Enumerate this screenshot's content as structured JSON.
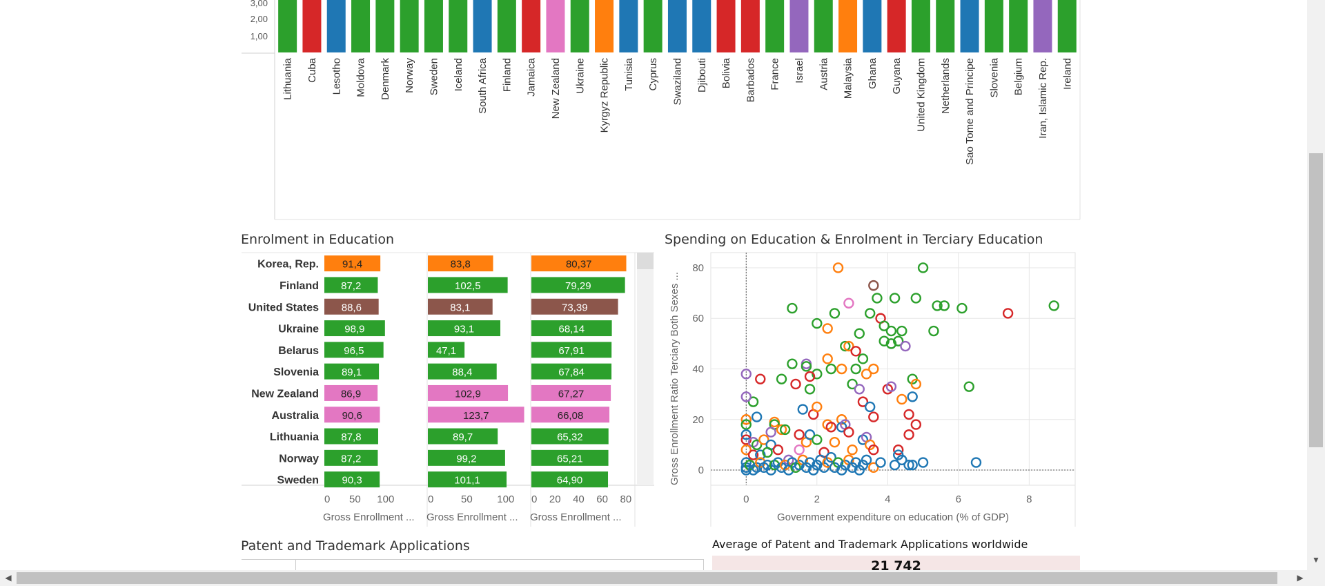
{
  "sections": {
    "enrolment_title": "Enrolment in Education",
    "spending_title": "Spending on Education & Enrolment in Terciary Education",
    "patent_title": "Patent and Trademark Applications",
    "patent_avg_label": "Average of Patent and Trademark Applications worldwide",
    "patent_avg_value": "21 742"
  },
  "colors": {
    "green": "#2ca02c",
    "red": "#d62728",
    "blue": "#1f77b4",
    "pink": "#e377c2",
    "orange": "#ff7f0e",
    "purple": "#9467bd",
    "brown": "#8c564b",
    "grid": "#e6e6e6",
    "axis_text": "#666666"
  },
  "chart_data": [
    {
      "type": "bar",
      "y_ticks": [
        "1,00",
        "2,00",
        "3,00"
      ],
      "categories": [
        "Lithuania",
        "Cuba",
        "Lesotho",
        "Moldova",
        "Denmark",
        "Norway",
        "Sweden",
        "Iceland",
        "South Africa",
        "Finland",
        "Jamaica",
        "New Zealand",
        "Ukraine",
        "Kyrgyz Republic",
        "Tunisia",
        "Cyprus",
        "Swaziland",
        "Djibouti",
        "Bolivia",
        "Barbados",
        "France",
        "Israel",
        "Austria",
        "Malaysia",
        "Ghana",
        "Guyana",
        "United Kingdom",
        "Netherlands",
        "Sao Tome and Principe",
        "Slovenia",
        "Belgium",
        "Iran, Islamic Rep.",
        "Ireland"
      ],
      "bar_colors": [
        "green",
        "red",
        "blue",
        "green",
        "green",
        "green",
        "green",
        "green",
        "blue",
        "green",
        "red",
        "pink",
        "green",
        "orange",
        "blue",
        "green",
        "blue",
        "blue",
        "red",
        "red",
        "green",
        "purple",
        "green",
        "orange",
        "blue",
        "red",
        "green",
        "green",
        "blue",
        "green",
        "green",
        "purple",
        "green"
      ]
    },
    {
      "type": "bar",
      "orientation": "horizontal",
      "countries": [
        "Korea, Rep.",
        "Finland",
        "United States",
        "Ukraine",
        "Belarus",
        "Slovenia",
        "New Zealand",
        "Australia",
        "Lithuania",
        "Norway",
        "Sweden"
      ],
      "row_colors": [
        "orange",
        "green",
        "brown",
        "green",
        "green",
        "green",
        "pink",
        "pink",
        "green",
        "green",
        "green"
      ],
      "series": [
        {
          "axis_label": "Gross Enrollment ...",
          "values": [
            91.4,
            87.2,
            88.6,
            98.9,
            96.5,
            89.1,
            86.9,
            90.6,
            87.8,
            87.2,
            90.3
          ],
          "labels": [
            "91,4",
            "87,2",
            "88,6",
            "98,9",
            "96,5",
            "89,1",
            "86,9",
            "90,6",
            "87,8",
            "87,2",
            "90,3"
          ],
          "max": 125,
          "ticks": [
            "0",
            "50",
            "100"
          ],
          "tick_values": [
            0,
            50,
            100
          ]
        },
        {
          "axis_label": "Gross Enrollment ...",
          "values": [
            83.8,
            102.5,
            83.1,
            93.1,
            47.1,
            88.4,
            102.9,
            123.7,
            89.7,
            99.2,
            101.1
          ],
          "labels": [
            "83,8",
            "102,5",
            "83,1",
            "93,1",
            "47,1",
            "88,4",
            "102,9",
            "123,7",
            "89,7",
            "99,2",
            "101,1"
          ],
          "max": 125,
          "ticks": [
            "0",
            "50",
            "100"
          ],
          "tick_values": [
            0,
            50,
            100
          ]
        },
        {
          "axis_label": "Gross Enrollment ...",
          "values": [
            80.37,
            79.29,
            73.39,
            68.14,
            67.91,
            67.84,
            67.27,
            66.08,
            65.32,
            65.21,
            64.9
          ],
          "labels": [
            "80,37",
            "79,29",
            "73,39",
            "68,14",
            "67,91",
            "67,84",
            "67,27",
            "66,08",
            "65,32",
            "65,21",
            "64,90"
          ],
          "max": 83,
          "ticks": [
            "0",
            "20",
            "40",
            "60",
            "80"
          ],
          "tick_values": [
            0,
            20,
            40,
            60,
            80
          ]
        }
      ]
    },
    {
      "type": "scatter",
      "xlabel": "Government expenditure on education (% of GDP)",
      "ylabel": "Gross Enrollment Ratio Terciary Both Sexes ...",
      "xlim": [
        -1,
        9.3
      ],
      "ylim": [
        -6,
        86
      ],
      "x_ticks": [
        0,
        2,
        4,
        6,
        8
      ],
      "y_ticks": [
        0,
        20,
        40,
        60,
        80
      ],
      "points": [
        {
          "x": 2.6,
          "y": 80,
          "c": "orange"
        },
        {
          "x": 3.6,
          "y": 73,
          "c": "brown"
        },
        {
          "x": 5.0,
          "y": 80,
          "c": "green"
        },
        {
          "x": 1.3,
          "y": 64,
          "c": "green"
        },
        {
          "x": 2.9,
          "y": 66,
          "c": "pink"
        },
        {
          "x": 3.7,
          "y": 68,
          "c": "green"
        },
        {
          "x": 4.2,
          "y": 68,
          "c": "green"
        },
        {
          "x": 4.8,
          "y": 68,
          "c": "green"
        },
        {
          "x": 5.4,
          "y": 65,
          "c": "green"
        },
        {
          "x": 5.6,
          "y": 65,
          "c": "green"
        },
        {
          "x": 6.1,
          "y": 64,
          "c": "green"
        },
        {
          "x": 7.4,
          "y": 62,
          "c": "red"
        },
        {
          "x": 8.7,
          "y": 65,
          "c": "green"
        },
        {
          "x": 2.5,
          "y": 62,
          "c": "green"
        },
        {
          "x": 3.5,
          "y": 62,
          "c": "green"
        },
        {
          "x": 2.0,
          "y": 58,
          "c": "green"
        },
        {
          "x": 2.3,
          "y": 56,
          "c": "orange"
        },
        {
          "x": 3.8,
          "y": 60,
          "c": "red"
        },
        {
          "x": 3.9,
          "y": 57,
          "c": "green"
        },
        {
          "x": 4.1,
          "y": 55,
          "c": "green"
        },
        {
          "x": 4.4,
          "y": 55,
          "c": "green"
        },
        {
          "x": 3.2,
          "y": 54,
          "c": "green"
        },
        {
          "x": 5.3,
          "y": 55,
          "c": "green"
        },
        {
          "x": 3.9,
          "y": 51,
          "c": "green"
        },
        {
          "x": 4.1,
          "y": 50,
          "c": "green"
        },
        {
          "x": 4.3,
          "y": 51,
          "c": "green"
        },
        {
          "x": 4.5,
          "y": 49,
          "c": "purple"
        },
        {
          "x": 2.8,
          "y": 49,
          "c": "green"
        },
        {
          "x": 2.9,
          "y": 49,
          "c": "orange"
        },
        {
          "x": 3.1,
          "y": 47,
          "c": "red"
        },
        {
          "x": 1.7,
          "y": 42,
          "c": "purple"
        },
        {
          "x": 1.3,
          "y": 42,
          "c": "green"
        },
        {
          "x": 1.7,
          "y": 41,
          "c": "green"
        },
        {
          "x": 2.3,
          "y": 44,
          "c": "orange"
        },
        {
          "x": 3.3,
          "y": 44,
          "c": "green"
        },
        {
          "x": 2.4,
          "y": 40,
          "c": "green"
        },
        {
          "x": 2.7,
          "y": 40,
          "c": "orange"
        },
        {
          "x": 3.1,
          "y": 40,
          "c": "green"
        },
        {
          "x": 3.6,
          "y": 40,
          "c": "orange"
        },
        {
          "x": 3.4,
          "y": 38,
          "c": "orange"
        },
        {
          "x": 2.0,
          "y": 38,
          "c": "green"
        },
        {
          "x": 1.8,
          "y": 37,
          "c": "red"
        },
        {
          "x": 1.0,
          "y": 36,
          "c": "green"
        },
        {
          "x": 1.4,
          "y": 34,
          "c": "red"
        },
        {
          "x": 1.8,
          "y": 32,
          "c": "green"
        },
        {
          "x": 3.0,
          "y": 34,
          "c": "green"
        },
        {
          "x": 3.2,
          "y": 32,
          "c": "purple"
        },
        {
          "x": 4.0,
          "y": 32,
          "c": "red"
        },
        {
          "x": 4.1,
          "y": 33,
          "c": "purple"
        },
        {
          "x": 4.7,
          "y": 36,
          "c": "green"
        },
        {
          "x": 4.8,
          "y": 34,
          "c": "orange"
        },
        {
          "x": 6.3,
          "y": 33,
          "c": "green"
        },
        {
          "x": 4.7,
          "y": 29,
          "c": "blue"
        },
        {
          "x": 4.4,
          "y": 28,
          "c": "orange"
        },
        {
          "x": 0.2,
          "y": 27,
          "c": "green"
        },
        {
          "x": 1.6,
          "y": 24,
          "c": "blue"
        },
        {
          "x": 1.9,
          "y": 22,
          "c": "red"
        },
        {
          "x": 2.0,
          "y": 25,
          "c": "orange"
        },
        {
          "x": 2.7,
          "y": 20,
          "c": "orange"
        },
        {
          "x": 3.3,
          "y": 27,
          "c": "red"
        },
        {
          "x": 3.5,
          "y": 25,
          "c": "blue"
        },
        {
          "x": 3.6,
          "y": 21,
          "c": "red"
        },
        {
          "x": 4.6,
          "y": 22,
          "c": "red"
        },
        {
          "x": 4.8,
          "y": 18,
          "c": "red"
        },
        {
          "x": 0.0,
          "y": 38,
          "c": "purple"
        },
        {
          "x": 0.4,
          "y": 36,
          "c": "red"
        },
        {
          "x": 0.0,
          "y": 29,
          "c": "purple"
        },
        {
          "x": 0.3,
          "y": 21,
          "c": "blue"
        },
        {
          "x": 0.0,
          "y": 20,
          "c": "orange"
        },
        {
          "x": 0.0,
          "y": 18,
          "c": "green"
        },
        {
          "x": 0.8,
          "y": 19,
          "c": "orange"
        },
        {
          "x": 0.8,
          "y": 18,
          "c": "green"
        },
        {
          "x": 1.0,
          "y": 16,
          "c": "orange"
        },
        {
          "x": 1.1,
          "y": 16,
          "c": "green"
        },
        {
          "x": 0.7,
          "y": 15,
          "c": "purple"
        },
        {
          "x": 0.0,
          "y": 14,
          "c": "blue"
        },
        {
          "x": 0.0,
          "y": 12,
          "c": "red"
        },
        {
          "x": 0.2,
          "y": 11,
          "c": "purple"
        },
        {
          "x": 0.3,
          "y": 10,
          "c": "green"
        },
        {
          "x": 0.5,
          "y": 12,
          "c": "orange"
        },
        {
          "x": 0.7,
          "y": 10,
          "c": "blue"
        },
        {
          "x": 0.0,
          "y": 8,
          "c": "orange"
        },
        {
          "x": 0.2,
          "y": 6,
          "c": "red"
        },
        {
          "x": 0.4,
          "y": 6,
          "c": "blue"
        },
        {
          "x": 0.6,
          "y": 7,
          "c": "green"
        },
        {
          "x": 0.9,
          "y": 8,
          "c": "red"
        },
        {
          "x": 1.2,
          "y": 4,
          "c": "purple"
        },
        {
          "x": 1.5,
          "y": 8,
          "c": "pink"
        },
        {
          "x": 1.5,
          "y": 14,
          "c": "red"
        },
        {
          "x": 1.7,
          "y": 11,
          "c": "orange"
        },
        {
          "x": 1.8,
          "y": 14,
          "c": "blue"
        },
        {
          "x": 2.0,
          "y": 12,
          "c": "green"
        },
        {
          "x": 2.2,
          "y": 7,
          "c": "red"
        },
        {
          "x": 2.3,
          "y": 18,
          "c": "orange"
        },
        {
          "x": 2.4,
          "y": 17,
          "c": "red"
        },
        {
          "x": 2.5,
          "y": 11,
          "c": "orange"
        },
        {
          "x": 2.7,
          "y": 17,
          "c": "blue"
        },
        {
          "x": 2.8,
          "y": 18,
          "c": "purple"
        },
        {
          "x": 2.9,
          "y": 15,
          "c": "red"
        },
        {
          "x": 3.0,
          "y": 8,
          "c": "orange"
        },
        {
          "x": 3.3,
          "y": 12,
          "c": "blue"
        },
        {
          "x": 3.4,
          "y": 13,
          "c": "purple"
        },
        {
          "x": 3.5,
          "y": 10,
          "c": "orange"
        },
        {
          "x": 3.6,
          "y": 8,
          "c": "red"
        },
        {
          "x": 4.3,
          "y": 8,
          "c": "red"
        },
        {
          "x": 4.3,
          "y": 6,
          "c": "blue"
        },
        {
          "x": 4.6,
          "y": 14,
          "c": "red"
        },
        {
          "x": 0.0,
          "y": 3,
          "c": "blue"
        },
        {
          "x": 0.0,
          "y": 1,
          "c": "blue"
        },
        {
          "x": 0.0,
          "y": 0,
          "c": "blue"
        },
        {
          "x": 0.1,
          "y": 2,
          "c": "green"
        },
        {
          "x": 0.2,
          "y": 0,
          "c": "blue"
        },
        {
          "x": 0.3,
          "y": 1,
          "c": "blue"
        },
        {
          "x": 0.4,
          "y": 3,
          "c": "orange"
        },
        {
          "x": 0.5,
          "y": 1,
          "c": "blue"
        },
        {
          "x": 0.6,
          "y": 2,
          "c": "blue"
        },
        {
          "x": 0.7,
          "y": 0,
          "c": "blue"
        },
        {
          "x": 0.8,
          "y": 2,
          "c": "green"
        },
        {
          "x": 0.9,
          "y": 3,
          "c": "blue"
        },
        {
          "x": 1.0,
          "y": 1,
          "c": "blue"
        },
        {
          "x": 1.1,
          "y": 2,
          "c": "orange"
        },
        {
          "x": 1.2,
          "y": 0,
          "c": "blue"
        },
        {
          "x": 1.3,
          "y": 3,
          "c": "blue"
        },
        {
          "x": 1.4,
          "y": 1,
          "c": "green"
        },
        {
          "x": 1.5,
          "y": 2,
          "c": "blue"
        },
        {
          "x": 1.6,
          "y": 4,
          "c": "orange"
        },
        {
          "x": 1.7,
          "y": 1,
          "c": "blue"
        },
        {
          "x": 1.8,
          "y": 3,
          "c": "blue"
        },
        {
          "x": 1.9,
          "y": 0,
          "c": "blue"
        },
        {
          "x": 2.0,
          "y": 2,
          "c": "blue"
        },
        {
          "x": 2.1,
          "y": 4,
          "c": "blue"
        },
        {
          "x": 2.2,
          "y": 1,
          "c": "blue"
        },
        {
          "x": 2.3,
          "y": 3,
          "c": "orange"
        },
        {
          "x": 2.4,
          "y": 5,
          "c": "blue"
        },
        {
          "x": 2.5,
          "y": 1,
          "c": "blue"
        },
        {
          "x": 2.6,
          "y": 3,
          "c": "green"
        },
        {
          "x": 2.7,
          "y": 0,
          "c": "blue"
        },
        {
          "x": 2.8,
          "y": 2,
          "c": "blue"
        },
        {
          "x": 2.9,
          "y": 4,
          "c": "orange"
        },
        {
          "x": 3.0,
          "y": 1,
          "c": "blue"
        },
        {
          "x": 3.1,
          "y": 3,
          "c": "blue"
        },
        {
          "x": 3.2,
          "y": 0,
          "c": "blue"
        },
        {
          "x": 3.3,
          "y": 2,
          "c": "blue"
        },
        {
          "x": 3.4,
          "y": 4,
          "c": "blue"
        },
        {
          "x": 3.6,
          "y": 1,
          "c": "orange"
        },
        {
          "x": 3.8,
          "y": 3,
          "c": "blue"
        },
        {
          "x": 4.2,
          "y": 2,
          "c": "blue"
        },
        {
          "x": 4.4,
          "y": 4,
          "c": "blue"
        },
        {
          "x": 4.6,
          "y": 2,
          "c": "blue"
        },
        {
          "x": 4.7,
          "y": 2,
          "c": "blue"
        },
        {
          "x": 5.0,
          "y": 3,
          "c": "blue"
        },
        {
          "x": 6.5,
          "y": 3,
          "c": "blue"
        }
      ]
    }
  ]
}
